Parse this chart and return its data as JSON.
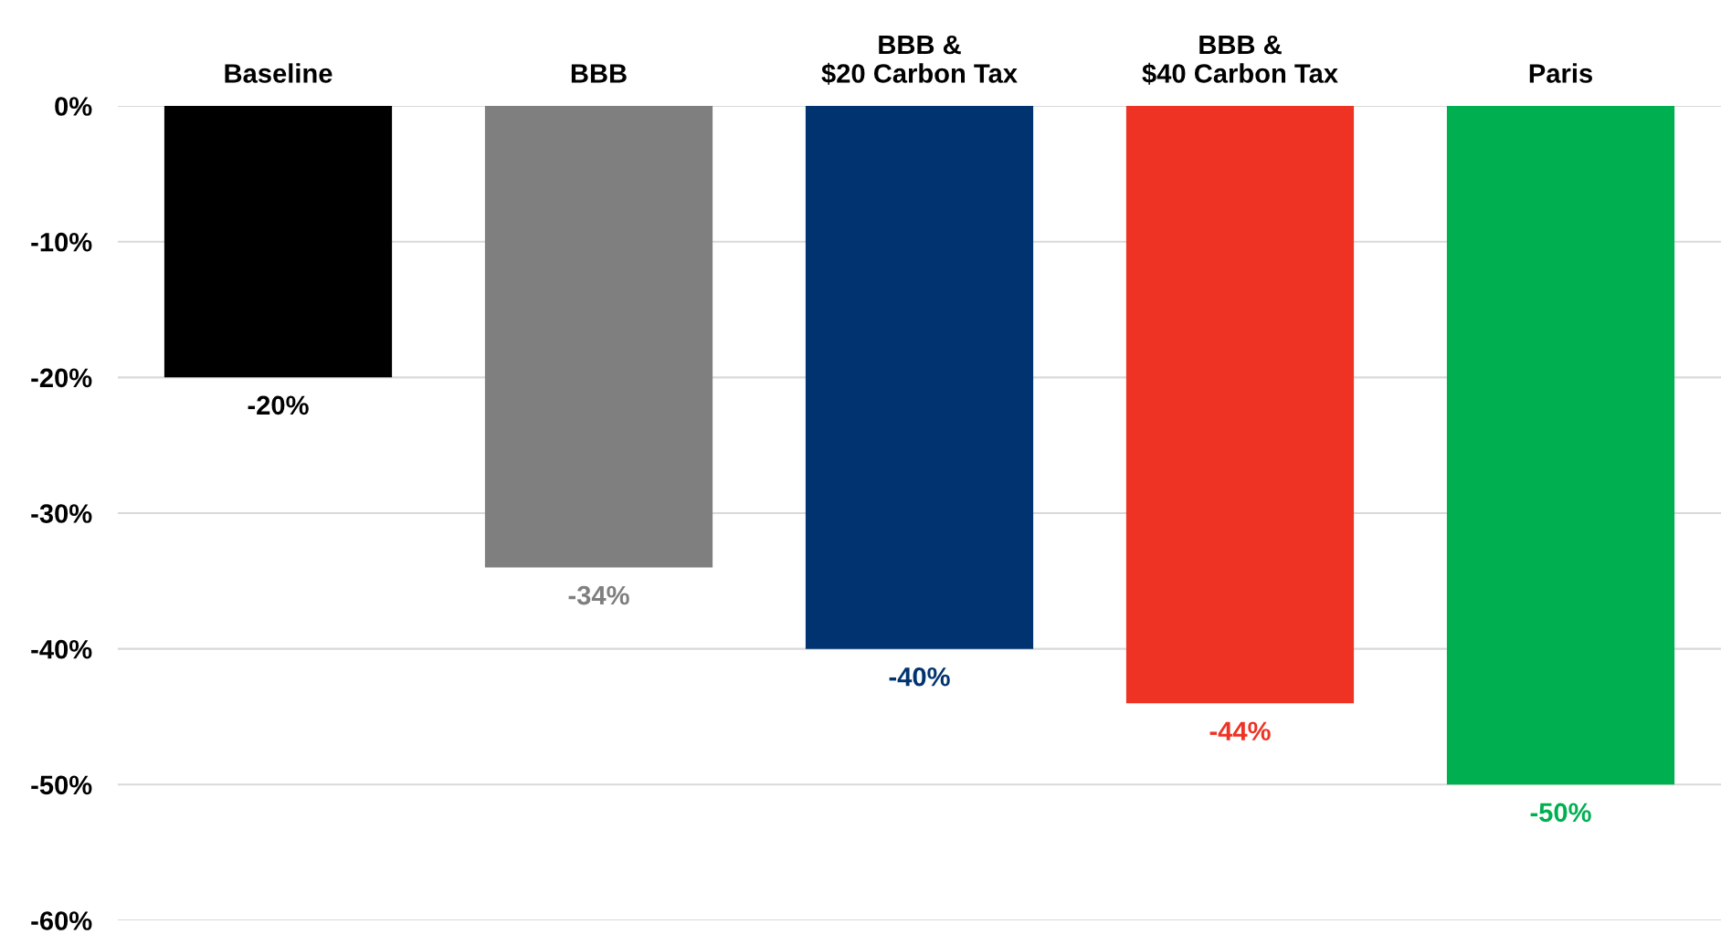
{
  "chart_data": {
    "type": "bar",
    "categories": [
      "Baseline",
      "BBB",
      "BBB &\n$20 Carbon Tax",
      "BBB &\n$40 Carbon Tax",
      "Paris"
    ],
    "values": [
      -20,
      -34,
      -40,
      -44,
      -50
    ],
    "colors": [
      "#000000",
      "#7f7f7f",
      "#003370",
      "#ee3224",
      "#00b050"
    ],
    "value_labels": [
      "-20%",
      "-34%",
      "-40%",
      "-44%",
      "-50%"
    ],
    "ylim": [
      -60,
      0
    ],
    "yticks": [
      {
        "value": 0,
        "label": "0%"
      },
      {
        "value": -10,
        "label": "-10%"
      },
      {
        "value": -20,
        "label": "-20%"
      },
      {
        "value": -30,
        "label": "-30%"
      },
      {
        "value": -40,
        "label": "-40%"
      },
      {
        "value": -50,
        "label": "-50%"
      },
      {
        "value": -60,
        "label": "-60%"
      }
    ],
    "grid": "y",
    "legend": false
  }
}
